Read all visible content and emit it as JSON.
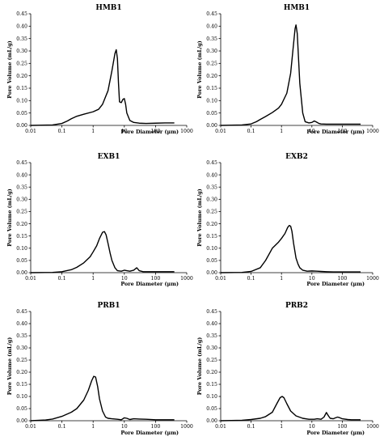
{
  "chart_data": [
    {
      "type": "line",
      "title": "HMB1",
      "xlabel": "Pore Diameter (μm)",
      "ylabel": "Pore Volume (mL/g)",
      "xscale": "log",
      "xlim": [
        0.01,
        1000
      ],
      "ylim": [
        0,
        0.45
      ],
      "x_ticks": [
        "0.01",
        "0.1",
        "1",
        "10",
        "100",
        "1000"
      ],
      "y_ticks": [
        "0.00",
        "0.05",
        "0.10",
        "0.15",
        "0.20",
        "0.25",
        "0.30",
        "0.35",
        "0.40",
        "0.45"
      ],
      "grid": false,
      "series": [
        {
          "x": [
            0.01,
            0.05,
            0.1,
            0.15,
            0.2,
            0.3,
            0.5,
            1,
            1.5,
            2,
            3,
            4,
            5,
            5.5,
            6,
            6.5,
            7,
            8,
            9,
            10,
            11,
            12,
            15,
            20,
            30,
            50,
            100,
            200,
            400
          ],
          "y": [
            0.0,
            0.002,
            0.008,
            0.018,
            0.027,
            0.037,
            0.045,
            0.055,
            0.065,
            0.085,
            0.14,
            0.22,
            0.29,
            0.305,
            0.27,
            0.17,
            0.095,
            0.092,
            0.105,
            0.108,
            0.085,
            0.05,
            0.02,
            0.012,
            0.009,
            0.008,
            0.009,
            0.01,
            0.01
          ]
        }
      ]
    },
    {
      "type": "line",
      "title": "HMB1",
      "xlabel": "Pore Diameter (μm)",
      "ylabel": "Pore Volume (mL/g)",
      "xscale": "log",
      "xlim": [
        0.01,
        1000
      ],
      "ylim": [
        0,
        0.45
      ],
      "x_ticks": [
        "0.01",
        "0.1",
        "1",
        "10",
        "100",
        "1000"
      ],
      "y_ticks": [
        "0.00",
        "0.05",
        "0.10",
        "0.15",
        "0.20",
        "0.25",
        "0.30",
        "0.35",
        "0.40",
        "0.45"
      ],
      "grid": false,
      "series": [
        {
          "x": [
            0.01,
            0.05,
            0.1,
            0.15,
            0.2,
            0.3,
            0.5,
            0.8,
            1,
            1.5,
            2,
            2.5,
            2.8,
            3,
            3.3,
            3.6,
            4,
            5,
            6,
            8,
            10,
            12,
            14,
            17,
            20,
            30,
            50,
            100,
            200,
            400
          ],
          "y": [
            0.0,
            0.002,
            0.006,
            0.015,
            0.024,
            0.036,
            0.052,
            0.07,
            0.085,
            0.13,
            0.21,
            0.33,
            0.39,
            0.405,
            0.37,
            0.28,
            0.17,
            0.05,
            0.015,
            0.01,
            0.012,
            0.018,
            0.014,
            0.008,
            0.006,
            0.005,
            0.005,
            0.005,
            0.005,
            0.005
          ]
        }
      ]
    },
    {
      "type": "line",
      "title": "EXB1",
      "xlabel": "Pore Diameter (μm)",
      "ylabel": "Pore Volume (mL/g)",
      "xscale": "log",
      "xlim": [
        0.01,
        1000
      ],
      "ylim": [
        0,
        0.45
      ],
      "x_ticks": [
        "0.01",
        "0.1",
        "1",
        "10",
        "100",
        "1000"
      ],
      "y_ticks": [
        "0.00",
        "0.05",
        "0.10",
        "0.15",
        "0.20",
        "0.25",
        "0.30",
        "0.35",
        "0.40",
        "0.45"
      ],
      "grid": false,
      "series": [
        {
          "x": [
            0.01,
            0.05,
            0.1,
            0.2,
            0.3,
            0.5,
            0.8,
            1,
            1.3,
            1.6,
            2,
            2.3,
            2.6,
            3,
            3.5,
            4,
            5,
            6,
            8,
            10,
            12,
            15,
            20,
            25,
            30,
            40,
            60,
            100,
            200,
            400
          ],
          "y": [
            0.0,
            0.001,
            0.004,
            0.012,
            0.022,
            0.04,
            0.065,
            0.085,
            0.11,
            0.14,
            0.165,
            0.168,
            0.155,
            0.12,
            0.08,
            0.05,
            0.02,
            0.008,
            0.006,
            0.01,
            0.008,
            0.006,
            0.01,
            0.02,
            0.008,
            0.004,
            0.004,
            0.004,
            0.004,
            0.004
          ]
        }
      ]
    },
    {
      "type": "line",
      "title": "EXB2",
      "xlabel": "Pore Diameter (μm)",
      "ylabel": "Pore Volume (mL/g)",
      "xscale": "log",
      "xlim": [
        0.01,
        1000
      ],
      "ylim": [
        0,
        0.45
      ],
      "x_ticks": [
        "0.01",
        "0.1",
        "1",
        "10",
        "100",
        "1000"
      ],
      "y_ticks": [
        "0.00",
        "0.05",
        "0.10",
        "0.15",
        "0.20",
        "0.25",
        "0.30",
        "0.35",
        "0.40",
        "0.45"
      ],
      "grid": false,
      "series": [
        {
          "x": [
            0.01,
            0.05,
            0.1,
            0.2,
            0.3,
            0.5,
            0.8,
            1,
            1.3,
            1.6,
            1.8,
            2,
            2.2,
            2.5,
            3,
            3.5,
            4,
            5,
            7,
            10,
            15,
            20,
            30,
            50,
            100,
            200,
            400
          ],
          "y": [
            0.0,
            0.001,
            0.005,
            0.02,
            0.05,
            0.1,
            0.125,
            0.14,
            0.16,
            0.185,
            0.193,
            0.19,
            0.17,
            0.12,
            0.06,
            0.035,
            0.02,
            0.01,
            0.006,
            0.007,
            0.006,
            0.005,
            0.004,
            0.003,
            0.003,
            0.003,
            0.003
          ]
        }
      ]
    },
    {
      "type": "line",
      "title": "PRB1",
      "xlabel": "Pore Diameter (μm)",
      "ylabel": "Pore Volume (mL/g)",
      "xscale": "log",
      "xlim": [
        0.01,
        1000
      ],
      "ylim": [
        0,
        0.45
      ],
      "x_ticks": [
        "0.01",
        "0.1",
        "1",
        "10",
        "100",
        "1000"
      ],
      "y_ticks": [
        "0.00",
        "0.05",
        "0.10",
        "0.15",
        "0.20",
        "0.25",
        "0.30",
        "0.35",
        "0.40",
        "0.45"
      ],
      "grid": false,
      "series": [
        {
          "x": [
            0.01,
            0.03,
            0.05,
            0.1,
            0.2,
            0.3,
            0.5,
            0.7,
            0.9,
            1.05,
            1.2,
            1.4,
            1.6,
            2,
            2.5,
            3,
            4,
            6,
            8,
            10,
            12,
            15,
            20,
            30,
            50,
            100,
            200,
            400
          ],
          "y": [
            0.0,
            0.003,
            0.007,
            0.018,
            0.035,
            0.05,
            0.085,
            0.125,
            0.165,
            0.183,
            0.18,
            0.14,
            0.09,
            0.04,
            0.015,
            0.01,
            0.008,
            0.006,
            0.004,
            0.012,
            0.01,
            0.005,
            0.008,
            0.007,
            0.006,
            0.004,
            0.004,
            0.004
          ]
        }
      ]
    },
    {
      "type": "line",
      "title": "PRB2",
      "xlabel": "Pore Diameter (μm)",
      "ylabel": "Pore Volume (mL/g)",
      "xscale": "log",
      "xlim": [
        0.01,
        1000
      ],
      "ylim": [
        0,
        0.45
      ],
      "x_ticks": [
        "0.01",
        "0.1",
        "1",
        "10",
        "100",
        "1000"
      ],
      "y_ticks": [
        "0.00",
        "0.05",
        "0.10",
        "0.15",
        "0.20",
        "0.25",
        "0.30",
        "0.35",
        "0.40",
        "0.45"
      ],
      "grid": false,
      "series": [
        {
          "x": [
            0.01,
            0.05,
            0.1,
            0.2,
            0.3,
            0.5,
            0.7,
            0.9,
            1.05,
            1.2,
            1.5,
            2,
            3,
            5,
            8,
            12,
            15,
            20,
            25,
            30,
            35,
            40,
            50,
            60,
            70,
            80,
            100,
            150,
            200,
            400
          ],
          "y": [
            0.0,
            0.002,
            0.005,
            0.01,
            0.017,
            0.035,
            0.07,
            0.095,
            0.1,
            0.095,
            0.07,
            0.04,
            0.02,
            0.01,
            0.006,
            0.006,
            0.008,
            0.006,
            0.015,
            0.034,
            0.02,
            0.01,
            0.008,
            0.012,
            0.015,
            0.013,
            0.008,
            0.005,
            0.004,
            0.004
          ]
        }
      ]
    }
  ]
}
